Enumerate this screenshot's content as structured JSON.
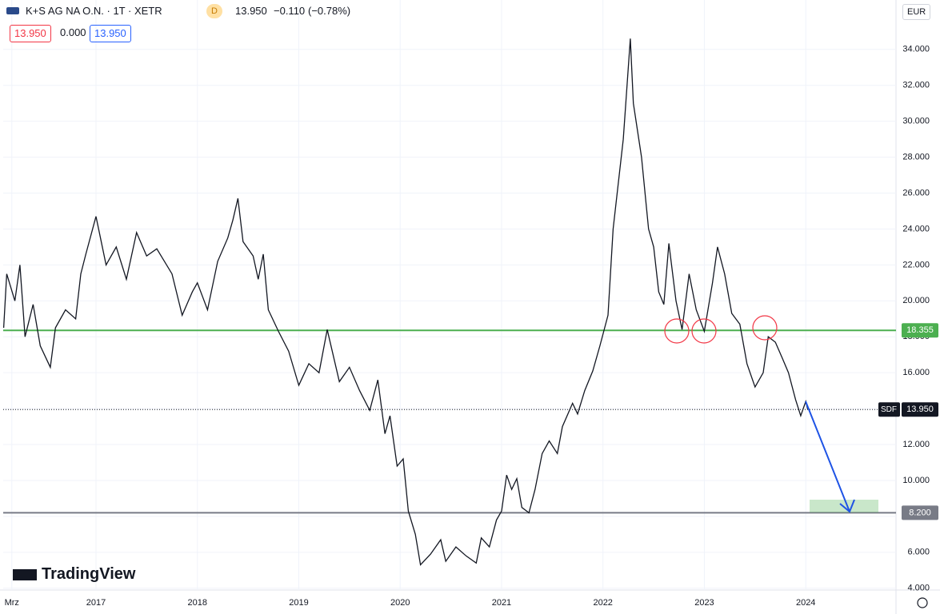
{
  "header": {
    "symbol": "K+S AG NA O.N. · 1T · XETR",
    "badge": "D",
    "last": "13.950",
    "change": "−0.110",
    "change_pct": "(−0.78%)",
    "inputs": [
      "13.950",
      "0.000",
      "13.950"
    ]
  },
  "currency": "EUR",
  "logo": "TradingView",
  "chart_data": {
    "type": "line",
    "x": [
      2016.09,
      2016.12,
      2016.2,
      2016.25,
      2016.3,
      2016.38,
      2016.45,
      2016.55,
      2016.6,
      2016.7,
      2016.8,
      2016.85,
      2016.9,
      2017.0,
      2017.1,
      2017.2,
      2017.3,
      2017.4,
      2017.5,
      2017.6,
      2017.75,
      2017.85,
      2017.95,
      2018.0,
      2018.1,
      2018.2,
      2018.3,
      2018.35,
      2018.4,
      2018.45,
      2018.55,
      2018.6,
      2018.65,
      2018.7,
      2018.8,
      2018.9,
      2019.0,
      2019.1,
      2019.2,
      2019.28,
      2019.4,
      2019.5,
      2019.6,
      2019.7,
      2019.78,
      2019.85,
      2019.9,
      2019.97,
      2020.03,
      2020.08,
      2020.15,
      2020.2,
      2020.3,
      2020.4,
      2020.45,
      2020.55,
      2020.65,
      2020.75,
      2020.8,
      2020.88,
      2020.95,
      2021.0,
      2021.05,
      2021.1,
      2021.15,
      2021.2,
      2021.27,
      2021.33,
      2021.4,
      2021.47,
      2021.55,
      2021.6,
      2021.7,
      2021.75,
      2021.82,
      2021.9,
      2021.97,
      2022.05,
      2022.1,
      2022.2,
      2022.27,
      2022.3,
      2022.38,
      2022.45,
      2022.5,
      2022.55,
      2022.6,
      2022.65,
      2022.72,
      2022.78,
      2022.85,
      2022.92,
      2023.0,
      2023.08,
      2023.13,
      2023.2,
      2023.27,
      2023.35,
      2023.42,
      2023.5,
      2023.58,
      2023.63,
      2023.7,
      2023.77,
      2023.83,
      2023.9,
      2023.95,
      2024.0,
      2024.02
    ],
    "series": [
      {
        "name": "K+S AG NA O.N.",
        "color": "#131722",
        "values": [
          18.5,
          21.5,
          20.0,
          22.0,
          18.0,
          19.8,
          17.5,
          16.3,
          18.5,
          19.5,
          19.0,
          21.5,
          22.6,
          24.7,
          22.0,
          23.0,
          21.2,
          23.8,
          22.5,
          22.9,
          21.5,
          19.2,
          20.5,
          21.0,
          19.5,
          22.2,
          23.5,
          24.5,
          25.7,
          23.3,
          22.5,
          21.2,
          22.6,
          19.5,
          18.3,
          17.2,
          15.3,
          16.5,
          16.0,
          18.4,
          15.5,
          16.3,
          15.0,
          13.9,
          15.6,
          12.6,
          13.6,
          10.8,
          11.2,
          8.3,
          7.0,
          5.3,
          5.9,
          6.7,
          5.5,
          6.3,
          5.8,
          5.4,
          6.8,
          6.3,
          7.8,
          8.3,
          10.3,
          9.5,
          10.1,
          8.5,
          8.2,
          9.5,
          11.5,
          12.2,
          11.5,
          13.0,
          14.3,
          13.7,
          15.0,
          16.1,
          17.5,
          19.2,
          24.0,
          29.0,
          34.6,
          31.0,
          28.0,
          24.0,
          23.0,
          20.5,
          19.8,
          23.2,
          20.0,
          18.4,
          21.5,
          19.5,
          18.3,
          21.0,
          23.0,
          21.5,
          19.3,
          18.7,
          16.5,
          15.2,
          16.0,
          18.0,
          17.7,
          16.8,
          16.0,
          14.5,
          13.6,
          14.4,
          13.95
        ]
      }
    ],
    "xlim": [
      2016.085,
      2024.89
    ],
    "xticks": [
      {
        "value": 2016.17,
        "label": "Mrz"
      },
      2017,
      2018,
      2019,
      2020,
      2021,
      2022,
      2023,
      2024
    ],
    "ylim": [
      3.9,
      36.75
    ],
    "yticks": [
      {
        "value": 4,
        "label": "4.000"
      },
      {
        "value": 6,
        "label": "6.000"
      },
      {
        "value": 8,
        "label": "8.000"
      },
      {
        "value": 10,
        "label": "10.000"
      },
      {
        "value": 12,
        "label": "12.000"
      },
      {
        "value": 14,
        "label": "14.000"
      },
      {
        "value": 16,
        "label": "16.000"
      },
      {
        "value": 18,
        "label": "18.000"
      },
      {
        "value": 20,
        "label": "20.000"
      },
      {
        "value": 22,
        "label": "22.000"
      },
      {
        "value": 24,
        "label": "24.000"
      },
      {
        "value": 26,
        "label": "26.000"
      },
      {
        "value": 28,
        "label": "28.000"
      },
      {
        "value": 30,
        "label": "30.000"
      },
      {
        "value": 32,
        "label": "32.000"
      },
      {
        "value": 34,
        "label": "34.000"
      }
    ],
    "grid": true,
    "levels": [
      {
        "value": 18.355,
        "label": "18.355",
        "color": "#4caf50"
      },
      {
        "value": 8.2,
        "label": "8.200",
        "color": "#787b86"
      }
    ],
    "last_price": {
      "value": 13.95,
      "label": "13.950",
      "tag": "SDF"
    }
  }
}
